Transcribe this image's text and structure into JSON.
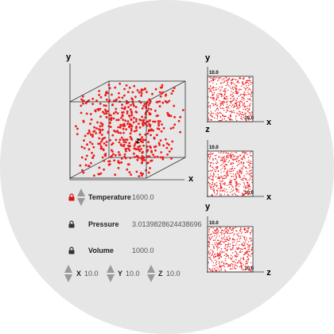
{
  "colors": {
    "particle": "#ee1c1c",
    "box": "#333333",
    "background": "#e6e6e6",
    "active_lock": "#dd1111",
    "inactive_lock": "#333333",
    "spinner": "#9a9a9a"
  },
  "main_view": {
    "x_axis_label": "x",
    "y_axis_label": "y",
    "z_axis_label": "z",
    "particle_count": 500
  },
  "projections": [
    {
      "vertical_axis": "y",
      "horizontal_axis": "x",
      "max_label": "10.0",
      "max_label_h": "10.0"
    },
    {
      "vertical_axis": "z",
      "horizontal_axis": "x",
      "max_label": "10.0",
      "max_label_h": "10.0"
    },
    {
      "vertical_axis": "y",
      "horizontal_axis": "z",
      "max_label": "10.0",
      "max_label_h": "10.0"
    }
  ],
  "controls": {
    "temperature": {
      "label": "Temperature",
      "value": "1600.0",
      "lock_icon": "lock-icon-active"
    },
    "pressure": {
      "label": "Pressure",
      "value": "3.0139828624438696",
      "lock_icon": "lock-icon"
    },
    "volume": {
      "label": "Volume",
      "value": "1000.0",
      "lock_icon": "lock-icon"
    }
  },
  "dimensions": [
    {
      "label": "X",
      "value": "10.0"
    },
    {
      "label": "Y",
      "value": "10.0"
    },
    {
      "label": "Z",
      "value": "10.0"
    }
  ]
}
